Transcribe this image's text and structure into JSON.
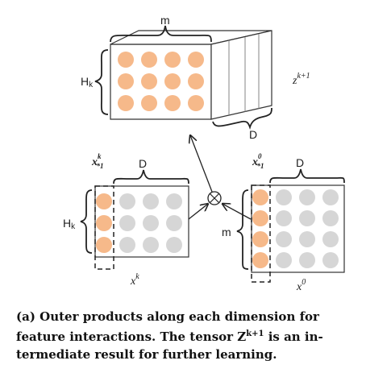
{
  "top_tensor": {
    "label_width": "m",
    "label_height": "H",
    "label_height_sub": "k",
    "label_depth": "D",
    "label_name": "z",
    "label_name_sup": "k+1",
    "slices": 4
  },
  "left_matrix": {
    "col_label": "x",
    "col_label_sup": "k",
    "col_label_sub": "*1",
    "label_width": "D",
    "label_height": "H",
    "label_height_sub": "k",
    "label_name": "x",
    "label_name_sup": "k",
    "rows": 3,
    "cols": 4
  },
  "right_matrix": {
    "col_label": "x",
    "col_label_sup": "0",
    "col_label_sub": "*1",
    "label_width": "D",
    "label_height": "m",
    "label_name": "x",
    "label_name_sup": "0",
    "rows": 4,
    "cols": 4
  },
  "operator_symbol": "⊗",
  "colors": {
    "highlight": "#f6b98a",
    "gray": "#d6d6d6",
    "stroke": "#333333"
  },
  "caption": {
    "line1": "(a) Outer products along each dimension for",
    "line2_pre": "feature interactions. The tensor Z",
    "line2_sup": "k+1",
    "line2_post": " is an in-",
    "line3": "termediate result for further learning."
  }
}
